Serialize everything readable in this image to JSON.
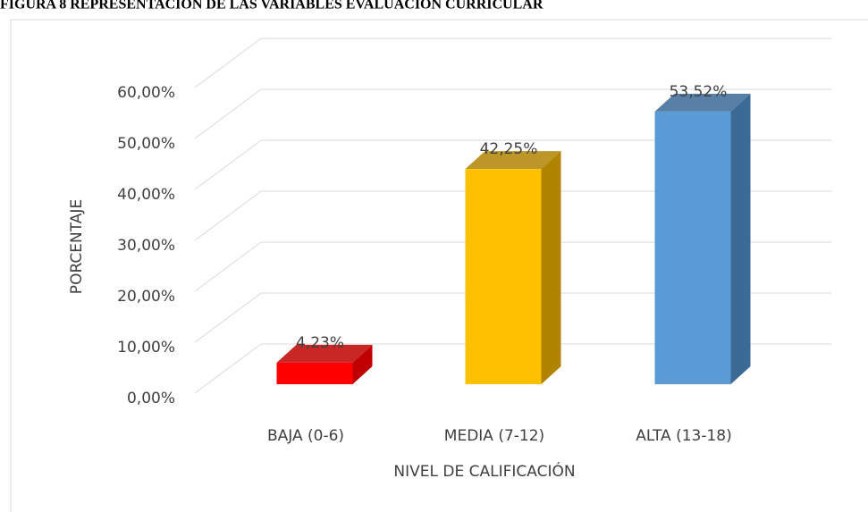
{
  "chart_data": {
    "type": "bar3d",
    "title": "FIGURA 8 REPRESENTACIÓN DE LAS VARIABLES EVALUACIÓN CURRICULAR",
    "x_label": "NIVEL DE CALIFICACIÓN",
    "y_label": "PORCENTAJE",
    "categories": [
      "BAJA (0-6)",
      "MEDIA (7-12)",
      "ALTA (13-18)"
    ],
    "values": [
      4.23,
      42.25,
      53.52
    ],
    "value_labels": [
      "4,23%",
      "42,25%",
      "53,52%"
    ],
    "colors": [
      "#ff0000",
      "#ffc000",
      "#5b9bd5"
    ],
    "side_colors": [
      "#c00000",
      "#b08400",
      "#3b6a96"
    ],
    "ylim": [
      0,
      60
    ],
    "yticks": [
      {
        "value": 0,
        "label": "0,00%"
      },
      {
        "value": 10,
        "label": "10,00%"
      },
      {
        "value": 20,
        "label": "20,00%"
      },
      {
        "value": 30,
        "label": "30,00%"
      },
      {
        "value": 40,
        "label": "40,00%"
      },
      {
        "value": 50,
        "label": "50,00%"
      },
      {
        "value": 60,
        "label": "60,00%"
      }
    ],
    "grid": true
  }
}
